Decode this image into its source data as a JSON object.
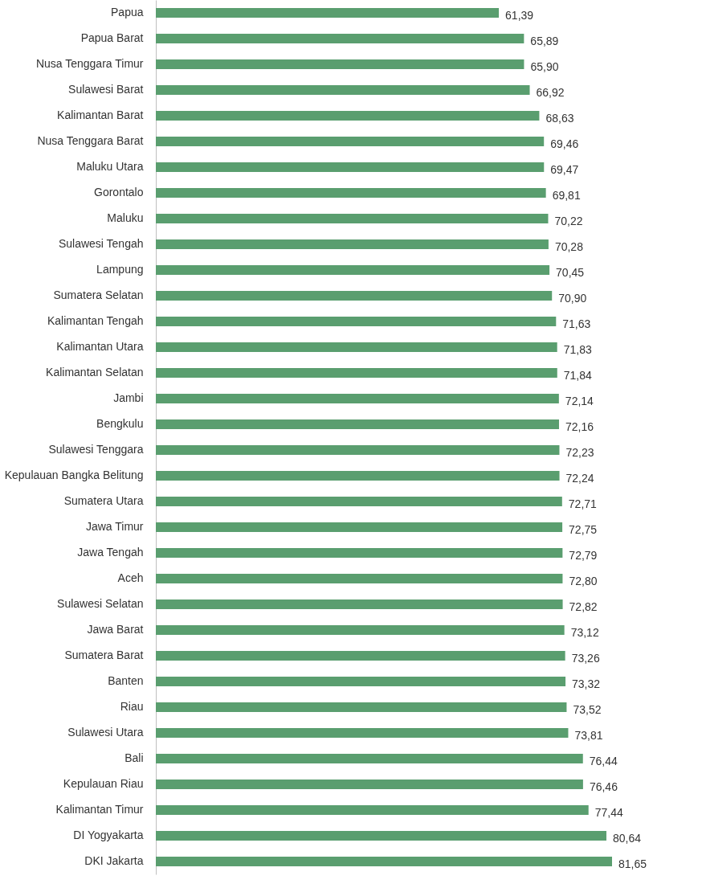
{
  "chart_data": {
    "type": "bar",
    "orientation": "horizontal",
    "categories": [
      "Papua",
      "Papua Barat",
      "Nusa Tenggara Timur",
      "Sulawesi Barat",
      "Kalimantan Barat",
      "Nusa Tenggara Barat",
      "Maluku Utara",
      "Gorontalo",
      "Maluku",
      "Sulawesi Tengah",
      "Lampung",
      "Sumatera Selatan",
      "Kalimantan Tengah",
      "Kalimantan Utara",
      "Kalimantan Selatan",
      "Jambi",
      "Bengkulu",
      "Sulawesi Tenggara",
      "Kepulauan Bangka Belitung",
      "Sumatera Utara",
      "Jawa Timur",
      "Jawa Tengah",
      "Aceh",
      "Sulawesi Selatan",
      "Jawa Barat",
      "Sumatera Barat",
      "Banten",
      "Riau",
      "Sulawesi Utara",
      "Bali",
      "Kepulauan Riau",
      "Kalimantan Timur",
      "DI Yogyakarta",
      "DKI Jakarta"
    ],
    "values": [
      61.39,
      65.89,
      65.9,
      66.92,
      68.63,
      69.46,
      69.47,
      69.81,
      70.22,
      70.28,
      70.45,
      70.9,
      71.63,
      71.83,
      71.84,
      72.14,
      72.16,
      72.23,
      72.24,
      72.71,
      72.75,
      72.79,
      72.8,
      72.82,
      73.12,
      73.26,
      73.32,
      73.52,
      73.81,
      76.44,
      76.46,
      77.44,
      80.64,
      81.65
    ],
    "value_labels": [
      "61,39",
      "65,89",
      "65,90",
      "66,92",
      "68,63",
      "69,46",
      "69,47",
      "69,81",
      "70,22",
      "70,28",
      "70,45",
      "70,90",
      "71,63",
      "71,83",
      "71,84",
      "72,14",
      "72,16",
      "72,23",
      "72,24",
      "72,71",
      "72,75",
      "72,79",
      "72,80",
      "72,82",
      "73,12",
      "73,26",
      "73,32",
      "73,52",
      "73,81",
      "76,44",
      "76,46",
      "77,44",
      "80,64",
      "81,65"
    ],
    "color": "#5a9e6f"
  }
}
